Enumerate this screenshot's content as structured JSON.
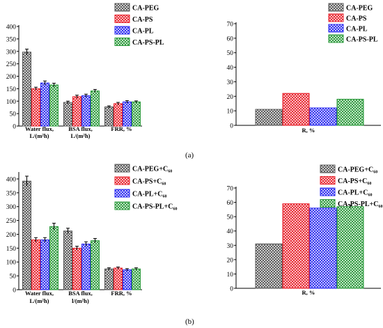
{
  "figure": {
    "caption_a": "(a)",
    "caption_b": "(b)"
  },
  "chart_data": [
    {
      "type": "bar",
      "panel": "a-left",
      "categories": [
        "Water flux,\nL/(m²h)",
        "BSA flux,\nL/(m²h)",
        "FRR, %"
      ],
      "ylim": [
        0,
        400
      ],
      "yticks": [
        0,
        50,
        100,
        150,
        200,
        250,
        300,
        350,
        400
      ],
      "legend_position": "top-right",
      "series": [
        {
          "name": "CA-PEG",
          "color": "#555555",
          "values": [
            297,
            95,
            77
          ],
          "errors": [
            12,
            5,
            4
          ]
        },
        {
          "name": "CA-PS",
          "color": "#e8212b",
          "values": [
            150,
            118,
            90
          ],
          "errors": [
            6,
            6,
            5
          ]
        },
        {
          "name": "CA-PL",
          "color": "#2b2bf0",
          "values": [
            173,
            122,
            97
          ],
          "errors": [
            8,
            6,
            5
          ]
        },
        {
          "name": "CA-PS-PL",
          "color": "#2a9a3a",
          "values": [
            165,
            141,
            97
          ],
          "errors": [
            7,
            6,
            4
          ]
        }
      ]
    },
    {
      "type": "bar",
      "panel": "a-right",
      "categories": [
        "R, %"
      ],
      "ylim": [
        0,
        70
      ],
      "yticks": [
        0,
        10,
        20,
        30,
        40,
        50,
        60,
        70
      ],
      "legend_position": "top-right",
      "series": [
        {
          "name": "CA-PEG",
          "color": "#555555",
          "values": [
            11
          ],
          "errors": [
            0
          ]
        },
        {
          "name": "CA-PS",
          "color": "#e8212b",
          "values": [
            22
          ],
          "errors": [
            0
          ]
        },
        {
          "name": "CA-PL",
          "color": "#2b2bf0",
          "values": [
            12
          ],
          "errors": [
            0
          ]
        },
        {
          "name": "CA-PS-PL",
          "color": "#2a9a3a",
          "values": [
            18
          ],
          "errors": [
            0
          ]
        }
      ]
    },
    {
      "type": "bar",
      "panel": "b-left",
      "categories": [
        "Water flux,\nL/(m²h)",
        "BSA flux,\nl/(m²h)",
        "FRR, %"
      ],
      "ylim": [
        0,
        420
      ],
      "yticks": [
        0,
        50,
        100,
        150,
        200,
        250,
        300,
        350,
        400
      ],
      "legend_position": "top-right",
      "series": [
        {
          "name": "CA-PEG+C₆₀",
          "color": "#555555",
          "values": [
            392,
            212,
            75
          ],
          "errors": [
            18,
            10,
            4
          ]
        },
        {
          "name": "CA-PS+C₆₀",
          "color": "#e8212b",
          "values": [
            180,
            150,
            78
          ],
          "errors": [
            8,
            7,
            4
          ]
        },
        {
          "name": "CA-PL+C₆₀",
          "color": "#2b2bf0",
          "values": [
            180,
            165,
            72
          ],
          "errors": [
            8,
            8,
            4
          ]
        },
        {
          "name": "CA-PS-PL+C₆₀",
          "color": "#2a9a3a",
          "values": [
            228,
            177,
            75
          ],
          "errors": [
            12,
            8,
            4
          ]
        }
      ]
    },
    {
      "type": "bar",
      "panel": "b-right",
      "categories": [
        "R, %"
      ],
      "ylim": [
        0,
        70
      ],
      "yticks": [
        0,
        10,
        20,
        30,
        40,
        50,
        60,
        70
      ],
      "legend_position": "top-right",
      "series": [
        {
          "name": "CA-PEG+C₆₀",
          "color": "#555555",
          "values": [
            31
          ],
          "errors": [
            0
          ]
        },
        {
          "name": "CA-PS+C₆₀",
          "color": "#e8212b",
          "values": [
            59
          ],
          "errors": [
            0
          ]
        },
        {
          "name": "CA-PL+C₆₀",
          "color": "#2b2bf0",
          "values": [
            56
          ],
          "errors": [
            0
          ]
        },
        {
          "name": "CA-PS-PL+C₆₀",
          "color": "#2a9a3a",
          "values": [
            57
          ],
          "errors": [
            1
          ]
        }
      ]
    }
  ]
}
